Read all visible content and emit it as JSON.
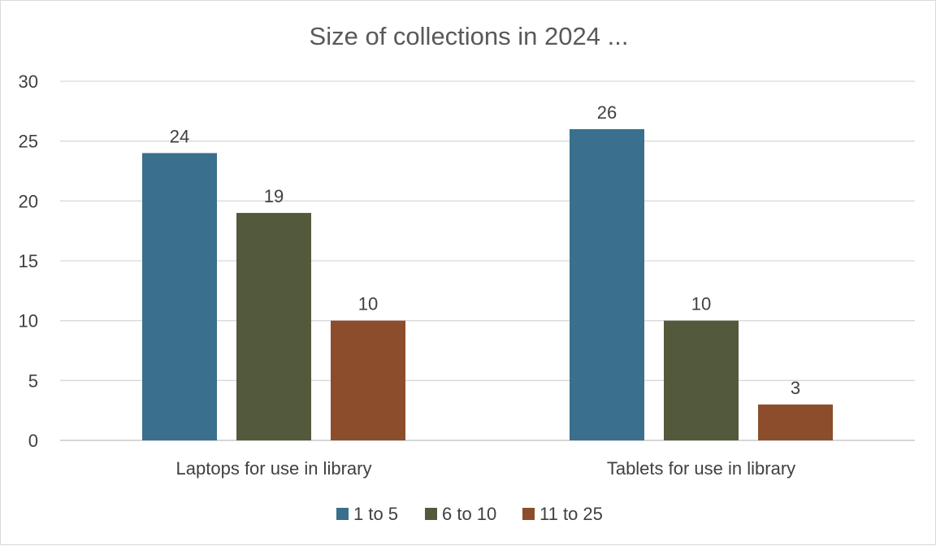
{
  "chart_data": {
    "type": "bar",
    "title": "Size of collections in 2024 ...",
    "xlabel": "",
    "ylabel": "",
    "categories": [
      "Laptops for use in library",
      "Tablets for use in library"
    ],
    "series": [
      {
        "name": "1 to 5",
        "values": [
          24,
          26
        ],
        "color": "#3a6f8d"
      },
      {
        "name": "6 to 10",
        "values": [
          19,
          10
        ],
        "color": "#535a3b"
      },
      {
        "name": "11 to 25",
        "values": [
          10,
          3
        ],
        "color": "#8b4d2b"
      }
    ],
    "ylim": [
      0,
      30
    ],
    "yticks": [
      "0",
      "5",
      "10",
      "15",
      "20",
      "25",
      "30"
    ],
    "grid": true,
    "legend_position": "bottom",
    "data_labels": true
  }
}
